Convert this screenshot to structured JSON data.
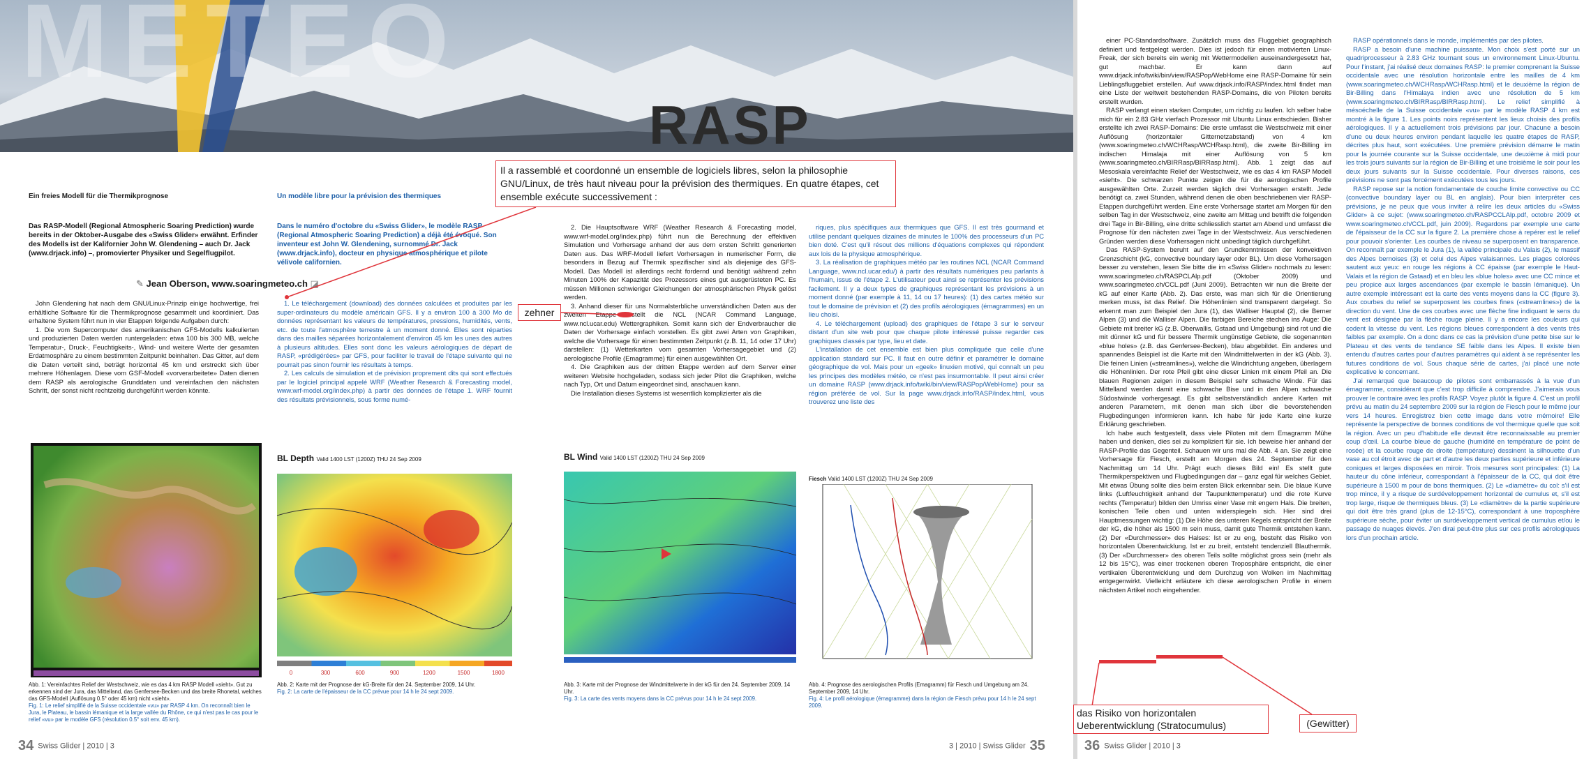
{
  "header": {
    "watermark": "METEO",
    "logo": "RASP"
  },
  "annotations": {
    "callout": "Il a rassemblé et coordonné un ensemble de logiciels libres, selon la philosophie GNU/Linux, de très haut niveau pour la prévision des thermiques. En quatre étapes, cet ensemble exécute successivement :",
    "zehner": "zehner",
    "risiko": [
      "das Risiko von horizontalen",
      "Ueberentwicklung (Stratocumulus)"
    ],
    "gewitter": "(Gewitter)"
  },
  "page34": {
    "col1": {
      "heading": "Ein freies Modell für die Thermikprognose",
      "intro": "Das RASP-Modell (Regional Atmospheric Soaring Prediction) wurde bereits in der Oktober-Ausgabe des «Swiss Glider» erwähnt. Erfinder des Modells ist der Kalifornier John W. Glendening – auch Dr. Jack (www.drjack.info) –, promovierter Physiker und Segelflugpilot.",
      "author": "Jean Oberson, www.soaringmeteo.ch",
      "body": [
        "John Glendening hat nach dem GNU/Linux-Prinzip einige hochwertige, frei erhältliche Software für die Thermikprognose gesammelt und koordiniert. Das erhaltene System führt nun in vier Etappen folgende Aufgaben durch:",
        "1. Die vom Supercomputer des amerikanischen GFS-Modells kalkulierten und produzierten Daten werden runtergeladen: etwa 100 bis 300 MB, welche Temperatur-, Druck-, Feuchtigkeits-, Wind- und weitere Werte der gesamten Erdatmosphäre zu einem bestimmten Zeitpunkt beinhalten. Das Gitter, auf dem die Daten verteilt sind, beträgt horizontal 45 km und erstreckt sich über mehrere Höhenlagen. Diese vom GSF-Modell «vorverarbeitete» Daten dienen dem RASP als aerologische Grunddaten und vereinfachen den nächsten Schritt, der sonst nicht rechtzeitig durchgeführt werden könnte."
      ]
    },
    "col2": {
      "heading": "Un modèle libre pour la prévision des thermiques",
      "intro": "Dans le numéro d'octobre du «Swiss Glider», le modèle RASP (Regional Atmospheric Soaring Prediction) a déjà été évoqué. Son inventeur est John W. Glendening, surnommé Dr. Jack (www.drjack.info), docteur en physique atmosphérique et pilote vélivole californien.",
      "body": [
        "1. Le téléchargement (download) des données calculées et produites par les super-ordinateurs du modèle américain GFS. Il y a environ 100 à 300 Mo de données représentant les valeurs de températures, pressions, humidités, vents, etc. de toute l'atmosphère terrestre à un moment donné. Elles sont réparties dans des mailles séparées horizontalement d'environ 45 km les unes des autres à plusieurs altitudes. Elles sont donc les valeurs aérologiques de départ de RASP, «prédigérées» par GFS, pour faciliter le travail de l'étape suivante qui ne pourrait pas sinon fournir les résultats à temps.",
        "2. Les calculs de simulation et de prévision proprement dits qui sont effectués par le logiciel principal appelé WRF (Weather Research & Forecasting model, www.wrf-model.org/index.php) à partir des données de l'étape 1. WRF fournit des résultats prévisionnels, sous forme numé-"
      ]
    },
    "footer": {
      "number": "34",
      "label": "Swiss Glider | 2010 | 3"
    }
  },
  "page35": {
    "col3": [
      "2. Die Hauptsoftware WRF (Weather Research & Forecasting model, www.wrf-model.org/index.php) führt nun die Berechnung der effektiven Simulation und Vorhersage anhand der aus dem ersten Schritt generierten Daten aus. Das WRF-Modell liefert Vorhersagen in numerischer Form, die besonders in Bezug auf Thermik spezifischer sind als diejenige des GFS-Modell. Das Modell ist allerdings recht fordernd und benötigt während zehn Minuten 100% der Kapazität des Prozessors eines gut ausgerüsteten PC. Es müssen Millionen schwieriger Gleichungen der atmosphärischen Physik gelöst werden.",
      "3. Anhand dieser für uns Normalsterbliche unverständlichen Daten aus der zweiten Etappe erstellt die NCL (NCAR Command Language, www.ncl.ucar.edu) Wettergraphiken. Somit kann sich der Endverbraucher die Daten der Vorhersage einfach vorstellen. Es gibt zwei Arten von Graphiken, welche die Vorhersage für einen bestimmten Zeitpunkt (z.B. 11, 14 oder 17 Uhr) darstellen: (1) Wetterkarten vom gesamten Vorhersagegebiet und (2) aerologische Profile (Emagramme) für einen ausgewählten Ort.",
      "4. Die Graphiken aus der dritten Etappe werden auf dem Server einer weiteren Website hochgeladen, sodass sich jeder Pilot die Graphiken, welche nach Typ, Ort und Datum eingeordnet sind, anschauen kann.",
      "Die Installation dieses Systems ist wesentlich komplizierter als die"
    ],
    "col4": [
      "riques, plus spécifiques aux thermiques que GFS. Il est très gourmand et utilise pendant quelques dizaines de minutes le 100% des processeurs d'un PC bien doté. C'est qu'il résout des millions d'équations complexes qui répondent aux lois de la physique atmosphérique.",
      "3. La réalisation de graphiques météo par les routines NCL (NCAR Command Language, www.ncl.ucar.edu/) à partir des résultats numériques peu parlants à l'humain, issus de l'étape 2. L'utilisateur peut ainsi se représenter les prévisions facilement. Il y a deux types de graphiques représentant les prévisions à un moment donné (par exemple à 11, 14 ou 17 heures): (1) des cartes météo sur tout le domaine de prévision et (2) des profils aérologiques (émagrammes) en un lieu choisi.",
      "4. Le téléchargement (upload) des graphiques de l'étape 3 sur le serveur distant d'un site web pour que chaque pilote intéressé puisse regarder ces graphiques classés par type, lieu et date.",
      "L'installation de cet ensemble est bien plus compliquée que celle d'une application standard sur PC. Il faut en outre définir et paramétrer le domaine géographique de vol. Mais pour un «geek» linuxien motivé, qui connaît un peu les principes des modèles météo, ce n'est pas insurmontable. Il peut ainsi créer un domaine RASP (www.drjack.info/twiki/bin/view/RASPop/WebHome) pour sa région préférée de vol. Sur la page www.drjack.info/RASP/index.html, vous trouverez une liste des"
    ],
    "footer": {
      "label": "3 | 2010 | Swiss Glider",
      "number": "35"
    }
  },
  "figures": [
    {
      "caption_de": "Abb. 1: Vereinfachtes Relief der Westschweiz, wie es das 4 km RASP Modell «sieht». Gut zu erkennen sind der Jura, das Mittelland, das Genfersee-Becken und das breite Rhonetal, welches das GFS-Modell (Auflösung 0.5° oder 45 km) nicht «sieht».",
      "caption_fr": "Fig. 1: Le relief simplifié de la Suisse occidentale «vu» par RASP 4 km. On reconnaît bien le Jura, le Plateau, le bassin lémanique et la large vallée du Rhône, ce qui n'est pas le cas pour le relief «vu» par le modèle GFS (résolution 0.5° soit env. 45 km)."
    },
    {
      "title": "BL Depth",
      "subtitle": "Valid 1400 LST (1200Z) THU 24 Sep 2009",
      "legend": [
        "0",
        "300",
        "600",
        "900",
        "1200",
        "1500",
        "1800"
      ],
      "caption_de": "Abb. 2: Karte mit der Prognose der kG-Breite für den 24. September 2009, 14 Uhr.",
      "caption_fr": "Fig. 2: La carte de l'épaisseur de la CC prévue pour 14 h le 24 sept 2009."
    },
    {
      "title": "BL Wind",
      "subtitle": "Valid 1400 LST (1200Z) THU 24 Sep 2009",
      "caption_de": "Abb. 3: Karte mit der Prognose der Windmittelwerte in der kG für den 24. September 2009, 14 Uhr.",
      "caption_fr": "Fig. 3: La carte des vents moyens dans la CC prévus pour 14 h le 24 sept 2009."
    },
    {
      "title": "Fiesch",
      "subtitle": "Valid 1400 LST (1200Z) THU 24 Sep 2009",
      "caption_de": "Abb. 4: Prognose des aerologischen Profils (Emagramm) für Fiesch und Umgebung am 24. September 2009, 14 Uhr.",
      "caption_fr": "Fig. 4: Le profil aérologique (émagramme) dans la région de Fiesch prévu pour 14 h le 24 sept 2009."
    }
  ],
  "page36": {
    "col5": [
      "einer PC-Standardsoftware. Zusätzlich muss das Fluggebiet geographisch definiert und festgelegt werden. Dies ist jedoch für einen motivierten Linux-Freak, der sich bereits ein wenig mit Wettermodellen auseinandergesetzt hat, gut machbar. Er kann dann auf www.drjack.info/twiki/bin/view/RASPop/WebHome eine RASP-Domaine für sein Lieblingsfluggebiet erstellen. Auf www.drjack.info/RASP/index.html findet man eine Liste der weltweit bestehenden RASP-Domains, die von Piloten bereits erstellt wurden.",
      "RASP verlangt einen starken Computer, um richtig zu laufen. Ich selber habe mich für ein 2.83 GHz vierfach Prozessor mit Ubuntu Linux entschieden. Bisher erstellte ich zwei RASP-Domains: Die erste umfasst die Westschweiz mit einer Auflösung (horizontaler Gitternetzabstand) von 4 km (www.soaringmeteo.ch/WCHRasp/WCHRasp.html), die zweite Bir-Billing im indischen Himalaja mit einer Auflösung von 5 km (www.soaringmeteo.ch/BIRRasp/BIRRasp.html). Abb. 1 zeigt das auf Mesoskala vereinfachte Relief der Westschweiz, wie es das 4 km RASP Modell «sieht». Die schwarzen Punkte zeigen die für die aerologischen Profile ausgewählten Orte. Zurzeit werden täglich drei Vorhersagen erstellt. Jede benötigt ca. zwei Stunden, während denen die oben beschriebenen vier RASP-Etappen durchgeführt werden. Eine erste Vorhersage startet am Morgen für den selben Tag in der Westschweiz, eine zweite am Mittag und betrifft die folgenden drei Tage in Bir-Billing, eine dritte schliesslich startet am Abend und umfasst die Prognose für den nächsten zwei Tage in der Westschweiz. Aus verschiedenen Gründen werden diese Vorhersagen nicht unbedingt täglich durchgeführt.",
      "Das RASP-System beruht auf den Grundkenntnissen der konvektiven Grenzschicht (kG, convective boundary layer oder BL). Um diese Vorhersagen besser zu verstehen, lesen Sie bitte die im «Swiss Glider» nochmals zu lesen: www.soaringmeteo.ch/RASPCLAlp.pdf (Oktober 2009) und www.soaringmeteo.ch/CCL.pdf (Juni 2009). Betrachten wir nun die Breite der kG auf einer Karte (Abb. 2). Das erste, was man sich für die Orientierung merken muss, ist das Relief. Die Höhenlinien sind transparent dargelegt. So erkennt man zum Beispiel den Jura (1), das Walliser Hauptal (2), die Berner Alpen (3) und die Walliser Alpen. Die farbigen Bereiche stechen ins Auge: Die Gebiete mit breiter kG (z.B. Oberwallis, Gstaad und Umgebung) sind rot und die mit dünner kG und für bessere Thermik ungünstige Gebiete, die sogenannten «blue holes» (z.B. das Genfersee-Becken), blau abgebildet. Ein anderes und spannendes Beispiel ist die Karte mit den Windmittelwerten in der kG (Abb. 3). Die feinen Linien («streamlines»), welche die Windrichtung angeben, überlagern die Höhenlinien. Der rote Pfeil gibt eine dieser Linien mit einem Pfeil an. Die blauen Regionen zeigen in diesem Beispiel sehr schwache Winde. Für das Mittelland werden damit eine schwache Bise und in den Alpen schwache Südostwinde vorhergesagt. Es gibt selbstverständlich andere Karten mit anderen Parametern, mit denen man sich über die bevorstehenden Flugbedingungen informieren kann. Ich habe für jede Karte eine kurze Erklärung geschrieben.",
      "Ich habe auch festgestellt, dass viele Piloten mit dem Emagramm Mühe haben und denken, dies sei zu kompliziert für sie. Ich beweise hier anhand der RASP-Profile das Gegenteil. Schauen wir uns mal die Abb. 4 an. Sie zeigt eine Vorhersage für Fiesch, erstellt am Morgen des 24. September für den Nachmittag um 14 Uhr. Prägt euch dieses Bild ein! Es stellt gute Thermikperspektiven und Flugbedingungen dar – ganz egal für welches Gebiet. Mit etwas Übung sollte dies beim ersten Blick erkennbar sein. Die blaue Kurve links (Luftfeuchtigkeit anhand der Taupunkttemperatur) und die rote Kurve rechts (Temperatur) bilden den Umriss einer Vase mit engem Hals. Die breiten, konischen Teile oben und unten widerspiegeln sich. Hier sind drei Hauptmessungen wichtig: (1) Die Höhe des unteren Kegels entspricht der Breite der kG, die höher als 1500 m sein muss, damit gute Thermik entstehen kann. (2) Der «Durchmesser» des Halses: Ist er zu eng, besteht das Risiko von horizontalen Überentwicklung. Ist er zu breit, entsteht tendenziell Blauthermik. (3) Der «Durchmesser» des oberen Teils sollte möglichst gross sein (mehr als 12 bis 15°C), was einer trockenen oberen Troposphäre entspricht, die einer vertikalen Überentwicklung und dem Durchzug von Wolken im Nachmittag entgegenwirkt. Vielleicht erläutere ich diese aerologischen Profile in einem nächsten Artikel noch eingehender."
    ],
    "col6": [
      "RASP opérationnels dans le monde, implémentés par des pilotes.",
      "RASP a besoin d'une machine puissante. Mon choix s'est porté sur un quadriprocesseur à 2.83 GHz tournant sous un environnement Linux-Ubuntu. Pour l'instant, j'ai réalisé deux domaines RASP: le premier comprenant la Suisse occidentale avec une résolution horizontale entre les mailles de 4 km (www.soaringmeteo.ch/WCHRasp/WCHRasp.html) et le deuxième la région de Bir-Billing dans l'Himalaya indien avec une résolution de 5 km (www.soaringmeteo.ch/BIRRasp/BIRRasp.html). Le relief simplifié à mésoéchelle de la Suisse occidentale «vu» par le modèle RASP 4 km est montré à la figure 1. Les points noirs représentent les lieux choisis des profils aérologiques. Il y a actuellement trois prévisions par jour. Chacune a besoin d'une ou deux heures environ pendant laquelle les quatre étapes de RASP, décrites plus haut, sont exécutées. Une première prévision démarre le matin pour la journée courante sur la Suisse occidentale, une deuxième à midi pour les trois jours suivants sur la région de Bir-Billing et une troisième le soir pour les deux jours suivants sur la Suisse occidentale. Pour diverses raisons, ces prévisions ne sont pas forcément exécutées tous les jours.",
      "RASP repose sur la notion fondamentale de couche limite convective ou CC (convective boundary layer ou BL en anglais). Pour bien interpréter ces prévisions, je ne peux que vous inviter à relire les deux articles du «Swiss Glider» à ce sujet: (www.soaringmeteo.ch/RASPCCLAlp.pdf, octobre 2009 et www.soaringmeteo.ch/CCL.pdf, juin 2009). Regardons par exemple une carte de l'épaisseur de la CC sur la figure 2. La première chose à repérer est le relief pour pouvoir s'orienter. Les courbes de niveau se superposent en transparence. On reconnaît par exemple le Jura (1), la vallée principale du Valais (2), le massif des Alpes bernoises (3) et celui des Alpes valaisannes. Les plages colorées sautent aux yeux: en rouge les régions à CC épaisse (par exemple le Haut-Valais et la région de Gstaad) et en bleu les «blue holes» avec une CC mince et peu propice aux larges ascendances (par exemple le bassin lémanique). Un autre exemple intéressant est la carte des vents moyens dans la CC (figure 3). Aux courbes du relief se superposent les courbes fines («streamlines») de la direction du vent. Une de ces courbes avec une flèche fine indiquant le sens du vent est désignée par la flèche rouge pleine. Il y a encore les couleurs qui codent la vitesse du vent. Les régions bleues correspondent à des vents très faibles par exemple. On a donc dans ce cas la prévision d'une petite bise sur le Plateau et des vents de tendance SE faible dans les Alpes. Il existe bien entendu d'autres cartes pour d'autres paramètres qui aident à se représenter les futures conditions de vol. Sous chaque série de cartes, j'ai placé une note explicative le concernant.",
      "J'ai remarqué que beaucoup de pilotes sont embarrassés à la vue d'un émagramme, considérant que c'est trop difficile à comprendre. J'aimerais vous prouver le contraire avec les profils RASP. Voyez plutôt la figure 4. C'est un profil prévu au matin du 24 septembre 2009 sur la région de Fiesch pour le même jour vers 14 heures. Enregistrez bien cette image dans votre mémoire! Elle représente la perspective de bonnes conditions de vol thermique quelle que soit la région. Avec un peu d'habitude elle devrait être reconnaissable au premier coup d'œil. La courbe bleue de gauche (humidité en température de point de rosée) et la courbe rouge de droite (température) dessinent la silhouette d'un vase au col étroit avec de part et d'autre les deux parties supérieure et inférieure coniques et larges disposées en miroir. Trois mesures sont principales: (1) La hauteur du cône inférieur, correspondant à l'épaisseur de la CC, qui doit être supérieure à 1500 m pour de bons thermiques. (2) Le «diamètre» du col: s'il est trop mince, il y a risque de surdéveloppement horizontal de cumulus et, s'il est trop large, risque de thermiques bleus. (3) Le «diamètre» de la partie supérieure qui doit être très grand (plus de 12-15°C), correspondant à une troposphère supérieure sèche, pour éviter un surdéveloppement vertical de cumulus et/ou le passage de nuages élevés. J'en dirai peut-être plus sur ces profils aérologiques lors d'un prochain article."
    ],
    "footer": {
      "number": "36",
      "label": "Swiss Glider | 2010 | 3"
    }
  }
}
